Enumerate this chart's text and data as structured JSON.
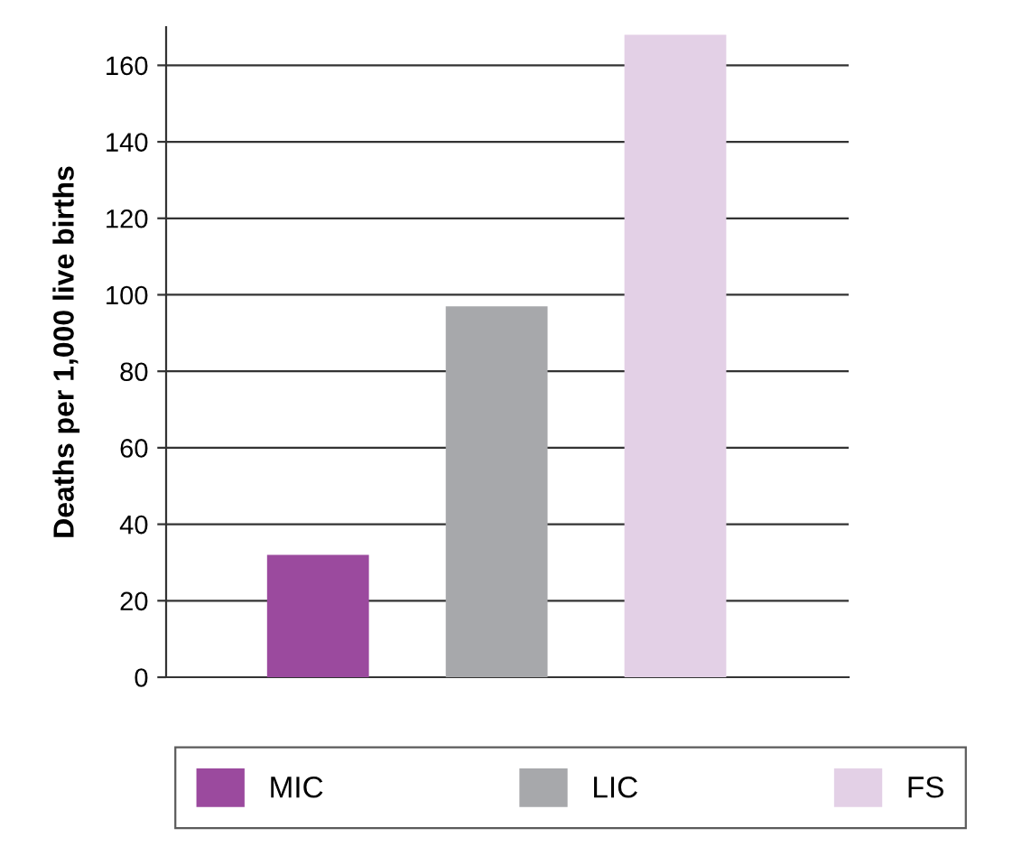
{
  "chart_data": {
    "type": "bar",
    "ylabel": "Deaths per 1,000 live births",
    "categories": [
      null,
      null,
      null
    ],
    "series": [
      {
        "name": "MIC",
        "color": "#9b4a9e",
        "values": [
          32,
          null,
          null
        ]
      },
      {
        "name": "LIC",
        "color": "#a7a8ab",
        "values": [
          null,
          97,
          null
        ]
      },
      {
        "name": "FS",
        "color": "#e3d0e6",
        "values": [
          null,
          null,
          168
        ]
      }
    ],
    "ylim": [
      0,
      170
    ],
    "yticks": [
      0,
      20,
      40,
      60,
      80,
      100,
      120,
      140,
      160
    ],
    "grid": "y",
    "legend": "bottom",
    "tick_labels": "y"
  }
}
